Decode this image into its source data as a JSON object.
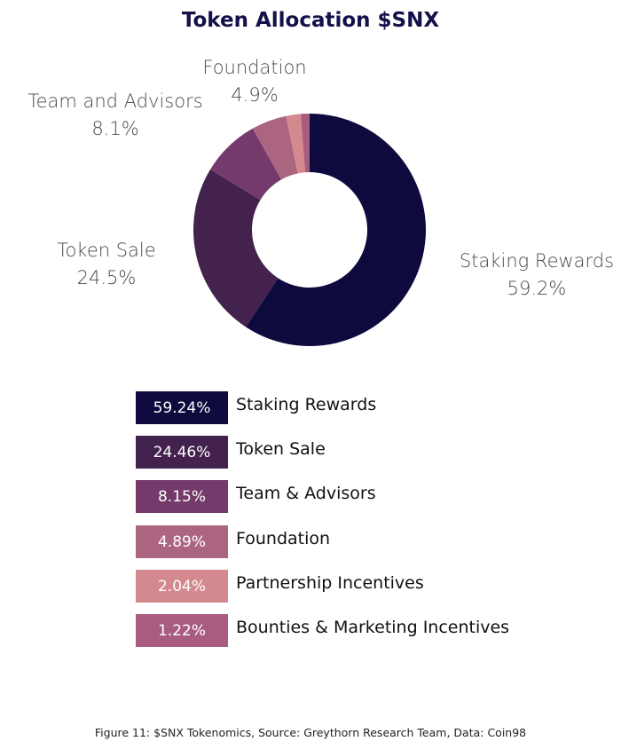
{
  "page": {
    "caption": "Figure 11: $SNX Tokenomics, Source: Greythorn Research Team, Data: Coin98"
  },
  "chart_data": {
    "type": "pie",
    "variant": "donut",
    "title": "Token Allocation $SNX",
    "start": "12 o'clock, clockwise",
    "slices": [
      {
        "name": "Staking Rewards",
        "value": 59.24,
        "color": "#0e0a3d",
        "pct_label": "59.2%",
        "outer_name": "Staking Rewards"
      },
      {
        "name": "Token Sale",
        "value": 24.46,
        "color": "#43224e",
        "pct_label": "24.5%",
        "outer_name": "Token Sale"
      },
      {
        "name": "Team & Advisors",
        "value": 8.15,
        "color": "#733a6b",
        "pct_label": "8.1%",
        "outer_name": "Team and Advisors"
      },
      {
        "name": "Foundation",
        "value": 4.89,
        "color": "#ac6581",
        "pct_label": "4.9%",
        "outer_name": "Foundation"
      },
      {
        "name": "Partnership Incentives",
        "value": 2.04,
        "color": "#d4898e",
        "pct_label": "",
        "outer_name": ""
      },
      {
        "name": "Bounties & Marketing Incentives",
        "value": 1.22,
        "color": "#a85d80",
        "pct_label": "",
        "outer_name": ""
      }
    ],
    "legend": [
      {
        "value_label": "59.24%",
        "label": "Staking Rewards",
        "color": "#0e0a3d"
      },
      {
        "value_label": "24.46%",
        "label": "Token Sale",
        "color": "#43224e"
      },
      {
        "value_label": "8.15%",
        "label": "Team & Advisors",
        "color": "#733a6b"
      },
      {
        "value_label": "4.89%",
        "label": "Foundation",
        "color": "#ac6581"
      },
      {
        "value_label": "2.04%",
        "label": "Partnership Incentives",
        "color": "#d4898e"
      },
      {
        "value_label": "1.22%",
        "label": "Bounties & Marketing Incentives",
        "color": "#a85d80"
      }
    ]
  }
}
